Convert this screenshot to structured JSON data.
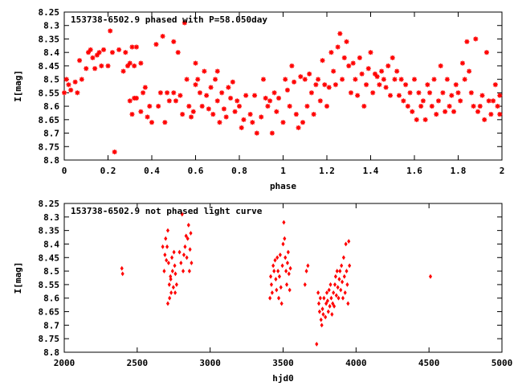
{
  "chart_data": [
    {
      "type": "scatter",
      "title": "153738-6502.9 phased with P=58.050day",
      "xlabel": "phase",
      "ylabel": "I[mag]",
      "xlim": [
        0,
        2
      ],
      "ylim": [
        8.8,
        8.25
      ],
      "y_inverted": true,
      "grid": false,
      "legend": "none",
      "marker": "asterisk",
      "color": "#ff0000",
      "x_ticks": [
        "0",
        "0.2",
        "0.4",
        "0.6",
        "0.8",
        "1",
        "1.2",
        "1.4",
        "1.6",
        "1.8",
        "2"
      ],
      "y_ticks": [
        "8.25",
        "8.3",
        "8.35",
        "8.4",
        "8.45",
        "8.5",
        "8.55",
        "8.6",
        "8.65",
        "8.7",
        "8.75",
        "8.8"
      ],
      "points": [
        [
          0.0,
          8.55
        ],
        [
          0.01,
          8.5
        ],
        [
          0.02,
          8.52
        ],
        [
          0.03,
          8.54
        ],
        [
          0.05,
          8.51
        ],
        [
          0.06,
          8.55
        ],
        [
          0.07,
          8.43
        ],
        [
          0.08,
          8.5
        ],
        [
          0.1,
          8.46
        ],
        [
          0.11,
          8.4
        ],
        [
          0.12,
          8.39
        ],
        [
          0.13,
          8.42
        ],
        [
          0.14,
          8.46
        ],
        [
          0.15,
          8.41
        ],
        [
          0.16,
          8.4
        ],
        [
          0.17,
          8.45
        ],
        [
          0.18,
          8.39
        ],
        [
          0.2,
          8.45
        ],
        [
          0.21,
          8.32
        ],
        [
          0.22,
          8.4
        ],
        [
          0.23,
          8.77
        ],
        [
          0.25,
          8.39
        ],
        [
          0.27,
          8.47
        ],
        [
          0.28,
          8.4
        ],
        [
          0.29,
          8.45
        ],
        [
          0.3,
          8.44
        ],
        [
          0.31,
          8.38
        ],
        [
          0.32,
          8.45
        ],
        [
          0.33,
          8.38
        ],
        [
          0.35,
          8.44
        ],
        [
          0.3,
          8.58
        ],
        [
          0.31,
          8.63
        ],
        [
          0.32,
          8.57
        ],
        [
          0.33,
          8.57
        ],
        [
          0.35,
          8.62
        ],
        [
          0.36,
          8.55
        ],
        [
          0.37,
          8.53
        ],
        [
          0.38,
          8.64
        ],
        [
          0.39,
          8.6
        ],
        [
          0.4,
          8.66
        ],
        [
          0.42,
          8.37
        ],
        [
          0.43,
          8.6
        ],
        [
          0.44,
          8.55
        ],
        [
          0.45,
          8.34
        ],
        [
          0.46,
          8.66
        ],
        [
          0.47,
          8.55
        ],
        [
          0.48,
          8.58
        ],
        [
          0.5,
          8.36
        ],
        [
          0.5,
          8.55
        ],
        [
          0.51,
          8.58
        ],
        [
          0.52,
          8.4
        ],
        [
          0.53,
          8.56
        ],
        [
          0.54,
          8.63
        ],
        [
          0.55,
          8.29
        ],
        [
          0.56,
          8.5
        ],
        [
          0.57,
          8.6
        ],
        [
          0.58,
          8.64
        ],
        [
          0.59,
          8.62
        ],
        [
          0.6,
          8.44
        ],
        [
          0.61,
          8.5
        ],
        [
          0.6,
          8.52
        ],
        [
          0.62,
          8.55
        ],
        [
          0.63,
          8.6
        ],
        [
          0.64,
          8.47
        ],
        [
          0.65,
          8.56
        ],
        [
          0.66,
          8.61
        ],
        [
          0.67,
          8.53
        ],
        [
          0.68,
          8.63
        ],
        [
          0.69,
          8.5
        ],
        [
          0.7,
          8.47
        ],
        [
          0.7,
          8.58
        ],
        [
          0.71,
          8.66
        ],
        [
          0.72,
          8.55
        ],
        [
          0.73,
          8.61
        ],
        [
          0.74,
          8.64
        ],
        [
          0.75,
          8.53
        ],
        [
          0.76,
          8.57
        ],
        [
          0.77,
          8.51
        ],
        [
          0.78,
          8.62
        ],
        [
          0.79,
          8.58
        ],
        [
          0.8,
          8.6
        ],
        [
          0.81,
          8.68
        ],
        [
          0.82,
          8.65
        ],
        [
          0.83,
          8.56
        ],
        [
          0.85,
          8.63
        ],
        [
          0.86,
          8.66
        ],
        [
          0.87,
          8.56
        ],
        [
          0.88,
          8.7
        ],
        [
          0.9,
          8.64
        ],
        [
          0.91,
          8.5
        ],
        [
          0.92,
          8.57
        ],
        [
          0.93,
          8.6
        ],
        [
          0.94,
          8.58
        ],
        [
          0.95,
          8.7
        ],
        [
          0.96,
          8.55
        ],
        [
          0.97,
          8.62
        ],
        [
          0.98,
          8.57
        ],
        [
          1.0,
          8.66
        ],
        [
          1.01,
          8.5
        ],
        [
          1.02,
          8.54
        ],
        [
          1.03,
          8.6
        ],
        [
          1.04,
          8.45
        ],
        [
          1.05,
          8.51
        ],
        [
          1.06,
          8.63
        ],
        [
          1.07,
          8.68
        ],
        [
          1.08,
          8.49
        ],
        [
          1.09,
          8.66
        ],
        [
          1.1,
          8.5
        ],
        [
          1.11,
          8.6
        ],
        [
          1.12,
          8.48
        ],
        [
          1.13,
          8.55
        ],
        [
          1.14,
          8.63
        ],
        [
          1.15,
          8.52
        ],
        [
          1.16,
          8.5
        ],
        [
          1.17,
          8.58
        ],
        [
          1.18,
          8.43
        ],
        [
          1.19,
          8.52
        ],
        [
          1.2,
          8.6
        ],
        [
          1.21,
          8.53
        ],
        [
          1.22,
          8.4
        ],
        [
          1.23,
          8.47
        ],
        [
          1.24,
          8.52
        ],
        [
          1.25,
          8.38
        ],
        [
          1.26,
          8.33
        ],
        [
          1.27,
          8.5
        ],
        [
          1.28,
          8.42
        ],
        [
          1.29,
          8.36
        ],
        [
          1.3,
          8.45
        ],
        [
          1.31,
          8.55
        ],
        [
          1.32,
          8.44
        ],
        [
          1.33,
          8.5
        ],
        [
          1.34,
          8.56
        ],
        [
          1.35,
          8.42
        ],
        [
          1.36,
          8.48
        ],
        [
          1.37,
          8.6
        ],
        [
          1.38,
          8.52
        ],
        [
          1.39,
          8.46
        ],
        [
          1.4,
          8.4
        ],
        [
          1.41,
          8.55
        ],
        [
          1.42,
          8.48
        ],
        [
          1.43,
          8.49
        ],
        [
          1.44,
          8.52
        ],
        [
          1.45,
          8.47
        ],
        [
          1.46,
          8.5
        ],
        [
          1.47,
          8.53
        ],
        [
          1.48,
          8.45
        ],
        [
          1.49,
          8.56
        ],
        [
          1.5,
          8.42
        ],
        [
          1.51,
          8.5
        ],
        [
          1.52,
          8.47
        ],
        [
          1.53,
          8.56
        ],
        [
          1.54,
          8.5
        ],
        [
          1.55,
          8.58
        ],
        [
          1.56,
          8.52
        ],
        [
          1.57,
          8.6
        ],
        [
          1.58,
          8.55
        ],
        [
          1.59,
          8.62
        ],
        [
          1.6,
          8.5
        ],
        [
          1.61,
          8.65
        ],
        [
          1.62,
          8.55
        ],
        [
          1.63,
          8.6
        ],
        [
          1.64,
          8.58
        ],
        [
          1.65,
          8.65
        ],
        [
          1.66,
          8.52
        ],
        [
          1.67,
          8.55
        ],
        [
          1.68,
          8.6
        ],
        [
          1.69,
          8.5
        ],
        [
          1.7,
          8.63
        ],
        [
          1.71,
          8.58
        ],
        [
          1.72,
          8.45
        ],
        [
          1.73,
          8.55
        ],
        [
          1.74,
          8.62
        ],
        [
          1.75,
          8.5
        ],
        [
          1.76,
          8.6
        ],
        [
          1.77,
          8.56
        ],
        [
          1.78,
          8.62
        ],
        [
          1.79,
          8.52
        ],
        [
          1.8,
          8.55
        ],
        [
          1.81,
          8.58
        ],
        [
          1.82,
          8.44
        ],
        [
          1.83,
          8.5
        ],
        [
          1.84,
          8.36
        ],
        [
          1.85,
          8.47
        ],
        [
          1.86,
          8.55
        ],
        [
          1.87,
          8.6
        ],
        [
          1.88,
          8.35
        ],
        [
          1.89,
          8.62
        ],
        [
          1.9,
          8.6
        ],
        [
          1.91,
          8.56
        ],
        [
          1.92,
          8.65
        ],
        [
          1.93,
          8.4
        ],
        [
          1.94,
          8.58
        ],
        [
          1.95,
          8.63
        ],
        [
          1.96,
          8.58
        ],
        [
          1.97,
          8.52
        ],
        [
          1.98,
          8.6
        ],
        [
          1.99,
          8.56
        ],
        [
          1.99,
          8.63
        ]
      ]
    },
    {
      "type": "scatter",
      "title": "153738-6502.9 not phased light curve",
      "xlabel": "hjd0",
      "ylabel": "I[mag]",
      "xlim": [
        2000,
        5000
      ],
      "ylim": [
        8.8,
        8.25
      ],
      "y_inverted": true,
      "grid": false,
      "legend": "none",
      "marker": "diamond",
      "color": "#ff0000",
      "x_ticks": [
        "2000",
        "2500",
        "3000",
        "3500",
        "4000",
        "4500",
        "5000"
      ],
      "y_ticks": [
        "8.25",
        "8.3",
        "8.35",
        "8.4",
        "8.45",
        "8.5",
        "8.55",
        "8.6",
        "8.65",
        "8.7",
        "8.75",
        "8.8"
      ],
      "points": [
        [
          2395,
          8.49
        ],
        [
          2400,
          8.51
        ],
        [
          2675,
          8.41
        ],
        [
          2685,
          8.5
        ],
        [
          2690,
          8.44
        ],
        [
          2695,
          8.38
        ],
        [
          2700,
          8.46
        ],
        [
          2705,
          8.41
        ],
        [
          2710,
          8.35
        ],
        [
          2715,
          8.47
        ],
        [
          2720,
          8.55
        ],
        [
          2722,
          8.6
        ],
        [
          2728,
          8.52
        ],
        [
          2733,
          8.58
        ],
        [
          2738,
          8.45
        ],
        [
          2742,
          8.5
        ],
        [
          2748,
          8.56
        ],
        [
          2752,
          8.43
        ],
        [
          2757,
          8.48
        ],
        [
          2762,
          8.51
        ],
        [
          2770,
          8.55
        ],
        [
          2790,
          8.43
        ],
        [
          2800,
          8.47
        ],
        [
          2808,
          8.29
        ],
        [
          2815,
          8.5
        ],
        [
          2820,
          8.44
        ],
        [
          2828,
          8.41
        ],
        [
          2835,
          8.37
        ],
        [
          2840,
          8.45
        ],
        [
          2846,
          8.38
        ],
        [
          2852,
          8.33
        ],
        [
          2858,
          8.5
        ],
        [
          2862,
          8.42
        ],
        [
          2867,
          8.36
        ],
        [
          2872,
          8.47
        ],
        [
          2710,
          8.62
        ],
        [
          2730,
          8.53
        ],
        [
          2760,
          8.58
        ],
        [
          3410,
          8.6
        ],
        [
          3415,
          8.52
        ],
        [
          3420,
          8.55
        ],
        [
          3425,
          8.58
        ],
        [
          3432,
          8.48
        ],
        [
          3438,
          8.5
        ],
        [
          3445,
          8.46
        ],
        [
          3450,
          8.53
        ],
        [
          3455,
          8.57
        ],
        [
          3460,
          8.45
        ],
        [
          3465,
          8.5
        ],
        [
          3470,
          8.6
        ],
        [
          3475,
          8.52
        ],
        [
          3480,
          8.44
        ],
        [
          3485,
          8.56
        ],
        [
          3490,
          8.62
        ],
        [
          3495,
          8.48
        ],
        [
          3500,
          8.4
        ],
        [
          3505,
          8.32
        ],
        [
          3510,
          8.38
        ],
        [
          3515,
          8.45
        ],
        [
          3520,
          8.5
        ],
        [
          3525,
          8.55
        ],
        [
          3530,
          8.47
        ],
        [
          3535,
          8.43
        ],
        [
          3540,
          8.51
        ],
        [
          3545,
          8.57
        ],
        [
          3550,
          8.49
        ],
        [
          3650,
          8.55
        ],
        [
          3660,
          8.5
        ],
        [
          3670,
          8.48
        ],
        [
          3730,
          8.77
        ],
        [
          3740,
          8.58
        ],
        [
          3745,
          8.62
        ],
        [
          3750,
          8.65
        ],
        [
          3755,
          8.6
        ],
        [
          3760,
          8.68
        ],
        [
          3765,
          8.7
        ],
        [
          3770,
          8.64
        ],
        [
          3775,
          8.66
        ],
        [
          3780,
          8.6
        ],
        [
          3790,
          8.67
        ],
        [
          3795,
          8.62
        ],
        [
          3800,
          8.58
        ],
        [
          3805,
          8.61
        ],
        [
          3810,
          8.65
        ],
        [
          3815,
          8.57
        ],
        [
          3820,
          8.63
        ],
        [
          3825,
          8.55
        ],
        [
          3830,
          8.6
        ],
        [
          3835,
          8.66
        ],
        [
          3840,
          8.62
        ],
        [
          3845,
          8.58
        ],
        [
          3850,
          8.63
        ],
        [
          3855,
          8.55
        ],
        [
          3860,
          8.52
        ],
        [
          3865,
          8.59
        ],
        [
          3870,
          8.5
        ],
        [
          3875,
          8.56
        ],
        [
          3880,
          8.6
        ],
        [
          3885,
          8.53
        ],
        [
          3890,
          8.5
        ],
        [
          3895,
          8.57
        ],
        [
          3900,
          8.48
        ],
        [
          3905,
          8.54
        ],
        [
          3910,
          8.6
        ],
        [
          3915,
          8.45
        ],
        [
          3920,
          8.52
        ],
        [
          3925,
          8.58
        ],
        [
          3930,
          8.4
        ],
        [
          3935,
          8.5
        ],
        [
          3940,
          8.55
        ],
        [
          3945,
          8.62
        ],
        [
          3950,
          8.39
        ],
        [
          3955,
          8.48
        ],
        [
          4510,
          8.52
        ]
      ]
    }
  ]
}
